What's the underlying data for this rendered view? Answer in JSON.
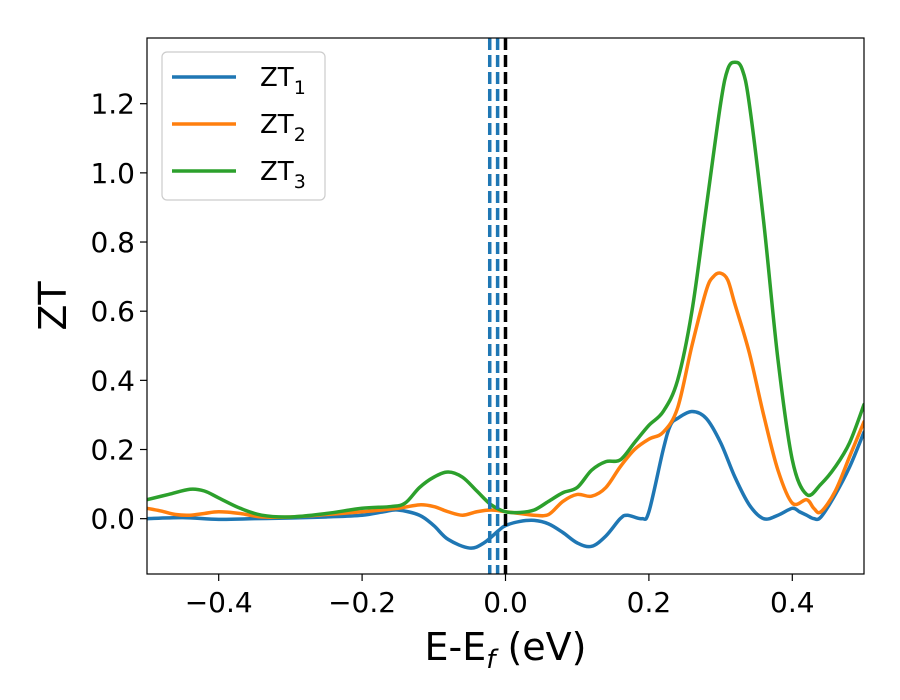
{
  "chart_data": {
    "type": "line",
    "xlabel": "E-E",
    "xlabel_sub": "f",
    "xlabel_unit": " (eV)",
    "ylabel": "ZT",
    "xlim": [
      -0.5,
      0.5
    ],
    "ylim": [
      -0.16,
      1.39
    ],
    "xticks": [
      -0.4,
      -0.2,
      0.0,
      0.2,
      0.4
    ],
    "xtick_labels": [
      "−0.4",
      "−0.2",
      "0.0",
      "0.2",
      "0.4"
    ],
    "yticks": [
      0.0,
      0.2,
      0.4,
      0.6,
      0.8,
      1.0,
      1.2
    ],
    "ytick_labels": [
      "0.0",
      "0.2",
      "0.4",
      "0.6",
      "0.8",
      "1.0",
      "1.2"
    ],
    "grid": false,
    "legend_position": "top-left",
    "vertical_lines": [
      {
        "x": -0.022,
        "style": "dashed",
        "color": "#1f77b4"
      },
      {
        "x": -0.011,
        "style": "dashed",
        "color": "#1f77b4"
      },
      {
        "x": 0.0,
        "style": "dashed",
        "color": "#000000"
      }
    ],
    "series": [
      {
        "name": "ZT",
        "sub": "1",
        "color": "#1f77b4",
        "x": [
          -0.5,
          -0.45,
          -0.4,
          -0.35,
          -0.3,
          -0.25,
          -0.2,
          -0.17,
          -0.15,
          -0.12,
          -0.1,
          -0.08,
          -0.05,
          -0.03,
          -0.01,
          0.0,
          0.02,
          0.04,
          0.06,
          0.08,
          0.1,
          0.12,
          0.14,
          0.16,
          0.17,
          0.19,
          0.2,
          0.22,
          0.23,
          0.24,
          0.26,
          0.28,
          0.3,
          0.32,
          0.34,
          0.36,
          0.38,
          0.4,
          0.41,
          0.42,
          0.43,
          0.44,
          0.46,
          0.48,
          0.5
        ],
        "y": [
          0.0,
          0.003,
          -0.002,
          0.0,
          0.002,
          0.005,
          0.01,
          0.02,
          0.025,
          0.01,
          -0.02,
          -0.06,
          -0.085,
          -0.07,
          -0.035,
          -0.02,
          -0.008,
          -0.005,
          -0.015,
          -0.04,
          -0.07,
          -0.08,
          -0.05,
          0.0,
          0.01,
          0.0,
          0.02,
          0.2,
          0.27,
          0.29,
          0.31,
          0.29,
          0.22,
          0.12,
          0.04,
          0.0,
          0.01,
          0.03,
          0.02,
          0.01,
          0.0,
          0.005,
          0.07,
          0.15,
          0.25
        ]
      },
      {
        "name": "ZT",
        "sub": "2",
        "color": "#ff7f0e",
        "x": [
          -0.5,
          -0.48,
          -0.46,
          -0.44,
          -0.42,
          -0.4,
          -0.37,
          -0.34,
          -0.3,
          -0.25,
          -0.2,
          -0.15,
          -0.12,
          -0.1,
          -0.08,
          -0.06,
          -0.04,
          -0.02,
          0.0,
          0.02,
          0.04,
          0.06,
          0.08,
          0.1,
          0.12,
          0.14,
          0.16,
          0.18,
          0.2,
          0.22,
          0.24,
          0.26,
          0.28,
          0.29,
          0.3,
          0.31,
          0.32,
          0.34,
          0.36,
          0.38,
          0.4,
          0.42,
          0.43,
          0.44,
          0.46,
          0.48,
          0.5
        ],
        "y": [
          0.03,
          0.022,
          0.012,
          0.01,
          0.015,
          0.02,
          0.015,
          0.005,
          0.005,
          0.012,
          0.02,
          0.03,
          0.04,
          0.035,
          0.02,
          0.01,
          0.02,
          0.025,
          0.02,
          0.015,
          0.01,
          0.012,
          0.05,
          0.07,
          0.065,
          0.09,
          0.15,
          0.2,
          0.23,
          0.25,
          0.32,
          0.5,
          0.66,
          0.7,
          0.71,
          0.69,
          0.62,
          0.48,
          0.3,
          0.14,
          0.045,
          0.055,
          0.03,
          0.02,
          0.08,
          0.18,
          0.28
        ]
      },
      {
        "name": "ZT",
        "sub": "3",
        "color": "#2ca02c",
        "x": [
          -0.5,
          -0.47,
          -0.44,
          -0.42,
          -0.4,
          -0.37,
          -0.34,
          -0.3,
          -0.25,
          -0.2,
          -0.16,
          -0.14,
          -0.12,
          -0.1,
          -0.08,
          -0.06,
          -0.04,
          -0.02,
          0.0,
          0.02,
          0.04,
          0.06,
          0.08,
          0.1,
          0.12,
          0.14,
          0.16,
          0.18,
          0.2,
          0.22,
          0.24,
          0.26,
          0.28,
          0.3,
          0.31,
          0.32,
          0.33,
          0.34,
          0.36,
          0.38,
          0.4,
          0.42,
          0.44,
          0.46,
          0.48,
          0.5
        ],
        "y": [
          0.055,
          0.07,
          0.085,
          0.08,
          0.06,
          0.03,
          0.01,
          0.005,
          0.015,
          0.03,
          0.035,
          0.045,
          0.09,
          0.12,
          0.135,
          0.12,
          0.08,
          0.04,
          0.02,
          0.018,
          0.025,
          0.05,
          0.075,
          0.09,
          0.14,
          0.165,
          0.17,
          0.22,
          0.27,
          0.31,
          0.4,
          0.6,
          0.9,
          1.2,
          1.3,
          1.32,
          1.3,
          1.2,
          0.86,
          0.46,
          0.17,
          0.07,
          0.1,
          0.15,
          0.22,
          0.33
        ]
      }
    ]
  }
}
